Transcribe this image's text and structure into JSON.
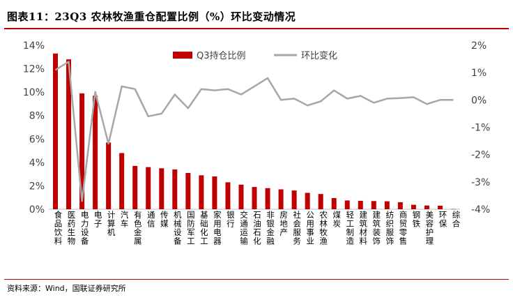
{
  "header": {
    "title": "图表11：23Q3 农林牧渔重仓配置比例（%）环比变动情况"
  },
  "footer": {
    "source": "资料来源：Wind，国联证券研究所"
  },
  "chart_data": {
    "type": "bar+line",
    "categories": [
      "食品饮料",
      "医药生物",
      "电力设备",
      "电子",
      "计算机",
      "汽车",
      "有色金属",
      "通信",
      "传媒",
      "机械设备",
      "国防军工",
      "基础化工",
      "家用电器",
      "银行",
      "交通运输",
      "石油石化",
      "非银金融",
      "房地产",
      "社会服务",
      "公用事业",
      "农林牧渔",
      "煤炭",
      "轻工制造",
      "建筑材料",
      "建筑装饰",
      "纺织服饰",
      "商贸零售",
      "钢铁",
      "美容护理",
      "环保",
      "综合"
    ],
    "series": [
      {
        "name": "Q3持仓比例",
        "axis": "left",
        "color": "#c00000",
        "values": [
          13.3,
          12.8,
          9.9,
          9.7,
          5.7,
          4.8,
          3.7,
          3.6,
          3.5,
          3.4,
          3.1,
          2.9,
          2.8,
          2.3,
          2.1,
          1.9,
          1.8,
          1.7,
          1.6,
          1.4,
          1.3,
          0.95,
          0.75,
          0.72,
          0.7,
          0.68,
          0.6,
          0.38,
          0.32,
          0.3,
          0.02
        ]
      },
      {
        "name": "环比变化",
        "axis": "right",
        "color": "#a6a6a6",
        "values": [
          1.1,
          1.4,
          -3.7,
          0.3,
          -1.6,
          0.5,
          0.4,
          -0.6,
          -0.5,
          0.2,
          -0.3,
          0.4,
          0.35,
          0.4,
          0.2,
          0.5,
          0.8,
          0.0,
          0.05,
          -0.2,
          -0.05,
          0.35,
          0.05,
          0.15,
          -0.1,
          0.05,
          0.07,
          0.1,
          -0.15,
          0.0,
          0.0
        ]
      }
    ],
    "y_left": {
      "ylim": [
        0,
        14
      ],
      "ticks": [
        "0%",
        "2%",
        "4%",
        "6%",
        "8%",
        "10%",
        "12%",
        "14%"
      ]
    },
    "y_right": {
      "ylim": [
        -4,
        2
      ],
      "ticks": [
        "-4%",
        "-3%",
        "-2%",
        "-1%",
        "0%",
        "1%",
        "2%"
      ]
    },
    "legend": {
      "position": "top-center"
    },
    "grid": false
  }
}
